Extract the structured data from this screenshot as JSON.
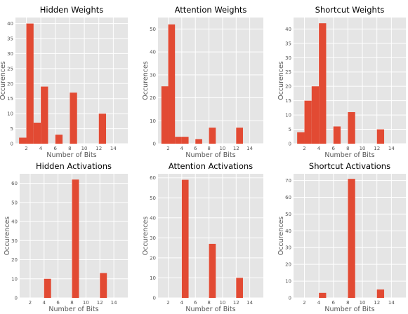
{
  "chart_data": [
    {
      "type": "bar",
      "title": "Hidden Weights",
      "xlabel": "Number of Bits",
      "ylabel": "Occurences",
      "x": [
        1.5,
        2.5,
        3.5,
        4.5,
        5.5,
        6.5,
        8.5,
        12.5
      ],
      "values": [
        2,
        40,
        7,
        19,
        0,
        3,
        17,
        10
      ],
      "xlim": [
        0.5,
        16
      ],
      "ylim": [
        0,
        42
      ],
      "xticks": [
        2,
        4,
        6,
        8,
        10,
        12,
        14
      ],
      "yticks": [
        0,
        5,
        10,
        15,
        20,
        25,
        30,
        35,
        40
      ],
      "color": "#e24a33"
    },
    {
      "type": "bar",
      "title": "Attention Weights",
      "xlabel": "Number of Bits",
      "ylabel": "Occurences",
      "x": [
        1.5,
        2.5,
        3.5,
        4.5,
        6.5,
        8.5,
        12.5
      ],
      "values": [
        25,
        52,
        3,
        3,
        2,
        7,
        7
      ],
      "xlim": [
        0.5,
        16
      ],
      "ylim": [
        0,
        55
      ],
      "xticks": [
        2,
        4,
        6,
        8,
        10,
        12,
        14
      ],
      "yticks": [
        0,
        10,
        20,
        30,
        40,
        50
      ],
      "color": "#e24a33"
    },
    {
      "type": "bar",
      "title": "Shortcut Weights",
      "xlabel": "Number of Bits",
      "ylabel": "Occurences",
      "x": [
        1.5,
        2.5,
        3.5,
        4.5,
        6.5,
        8.5,
        12.5
      ],
      "values": [
        4,
        15,
        20,
        42,
        6,
        11,
        5
      ],
      "xlim": [
        0.5,
        16
      ],
      "ylim": [
        0,
        44
      ],
      "xticks": [
        2,
        4,
        6,
        8,
        10,
        12,
        14
      ],
      "yticks": [
        0,
        5,
        10,
        15,
        20,
        25,
        30,
        35,
        40
      ],
      "color": "#e24a33"
    },
    {
      "type": "bar",
      "title": "Hidden Activations",
      "xlabel": "Number of Bits",
      "ylabel": "Occurences",
      "x": [
        4.5,
        8.5,
        12.5
      ],
      "values": [
        10,
        62,
        13
      ],
      "xlim": [
        0.5,
        16
      ],
      "ylim": [
        0,
        65
      ],
      "xticks": [
        2,
        4,
        6,
        8,
        10,
        12,
        14
      ],
      "yticks": [
        0,
        10,
        20,
        30,
        40,
        50,
        60
      ],
      "color": "#e24a33"
    },
    {
      "type": "bar",
      "title": "Attention Activations",
      "xlabel": "Number of Bits",
      "ylabel": "Occurences",
      "x": [
        4.5,
        8.5,
        12.5
      ],
      "values": [
        59,
        27,
        10
      ],
      "xlim": [
        0.5,
        16
      ],
      "ylim": [
        0,
        62
      ],
      "xticks": [
        2,
        4,
        6,
        8,
        10,
        12,
        14
      ],
      "yticks": [
        0,
        10,
        20,
        30,
        40,
        50,
        60
      ],
      "color": "#e24a33"
    },
    {
      "type": "bar",
      "title": "Shortcut Activations",
      "xlabel": "Number of Bits",
      "ylabel": "Occurences",
      "x": [
        4.5,
        8.5,
        12.5
      ],
      "values": [
        3,
        71,
        5
      ],
      "xlim": [
        0.5,
        16
      ],
      "ylim": [
        0,
        74
      ],
      "xticks": [
        2,
        4,
        6,
        8,
        10,
        12,
        14
      ],
      "yticks": [
        0,
        10,
        20,
        30,
        40,
        50,
        60,
        70
      ],
      "color": "#e24a33"
    }
  ]
}
